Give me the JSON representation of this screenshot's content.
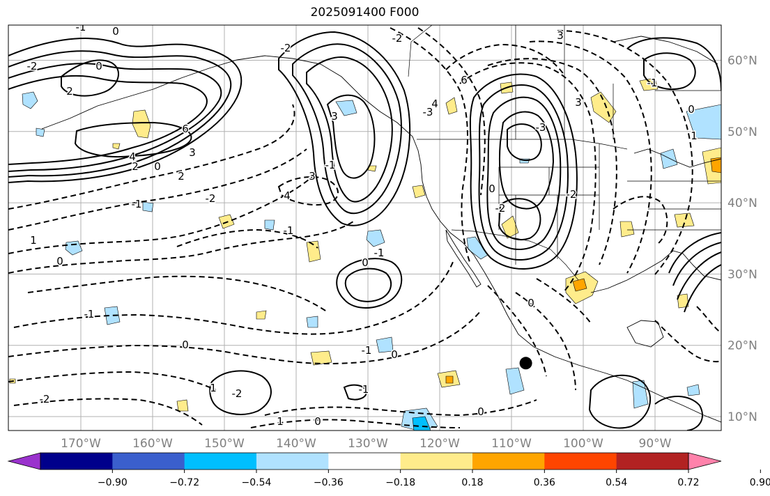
{
  "title": "2025091400 F000",
  "lon_ticks": [
    "170°W",
    "160°W",
    "150°W",
    "140°W",
    "130°W",
    "120°W",
    "110°W",
    "100°W",
    "90°W"
  ],
  "lat_ticks": [
    "60°N",
    "50°N",
    "40°N",
    "30°N",
    "20°N",
    "10°N"
  ],
  "colorbar": {
    "colors": [
      "#9a32cd",
      "#00008b",
      "#3a5fcd",
      "#00bfff",
      "#b0e2ff",
      "#ffffff",
      "#ffec8b",
      "#ffa500",
      "#ff4500",
      "#b22222",
      "#ff82ab"
    ],
    "labels": [
      "−0.90",
      "−0.72",
      "−0.54",
      "−0.36",
      "−0.18",
      "0.18",
      "0.36",
      "0.54",
      "0.72",
      "0.90"
    ]
  },
  "contour_labels": [
    "-1",
    "0",
    "-2",
    "2",
    "0",
    "6",
    "3",
    "4",
    "2",
    "0",
    "2",
    "-2",
    "-1",
    "1",
    "0",
    "-2",
    "4",
    "3",
    "3",
    "-1",
    "-2",
    "-3",
    "4",
    "6",
    "3",
    "3",
    "-3",
    "-2",
    "0",
    "-2",
    "-1",
    "0",
    "1",
    "0",
    "-1",
    "0",
    "-1",
    "-1",
    "0",
    "-1",
    "0",
    "1",
    "-2",
    "-1",
    "-2",
    "1",
    "0",
    "0"
  ],
  "marker": {
    "name": "storm-center",
    "lon": -108,
    "lat": 17.5
  }
}
